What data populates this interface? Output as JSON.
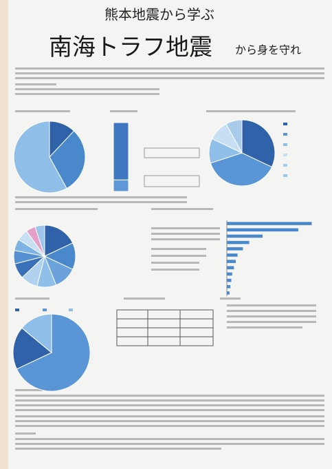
{
  "header": {
    "subtitle": "熊本地震から学ぶ",
    "title": "南海トラフ地震",
    "title_suffix": "から身を守れ"
  },
  "charts": [
    {
      "type": "pie",
      "values": [
        12,
        30,
        58
      ],
      "colors": [
        "#2f62a8",
        "#4a88cc",
        "#8fbfe8"
      ]
    },
    {
      "type": "stack",
      "values": [
        75,
        15
      ],
      "colors": [
        "#3f78c0",
        "#5e98d6"
      ]
    },
    {
      "type": "pie",
      "values": [
        32,
        38,
        12,
        10,
        8
      ],
      "colors": [
        "#2f62a8",
        "#5a95d6",
        "#8fbfe8",
        "#c7dff3",
        "#a8cbe9"
      ]
    },
    {
      "type": "pie",
      "values": [
        18,
        14,
        12,
        10,
        9,
        8,
        7,
        6,
        6,
        5,
        5
      ],
      "colors": [
        "#2f62a8",
        "#4a88cc",
        "#6aa3dc",
        "#8fbfe8",
        "#b0d2ef",
        "#3a70b8",
        "#5590d0",
        "#7fb3e4",
        "#c7dff3",
        "#e3a0c8",
        "#9bc5ea"
      ]
    },
    {
      "type": "hbar",
      "values": [
        95,
        80,
        40,
        25,
        18,
        12,
        10,
        8,
        6,
        5,
        4,
        3
      ],
      "color": "#4a88cc",
      "xlim": [
        0,
        100
      ]
    },
    {
      "type": "pie",
      "values": [
        68,
        18,
        14
      ],
      "colors": [
        "#5a95d6",
        "#2f62a8",
        "#8fbfe8"
      ]
    }
  ]
}
